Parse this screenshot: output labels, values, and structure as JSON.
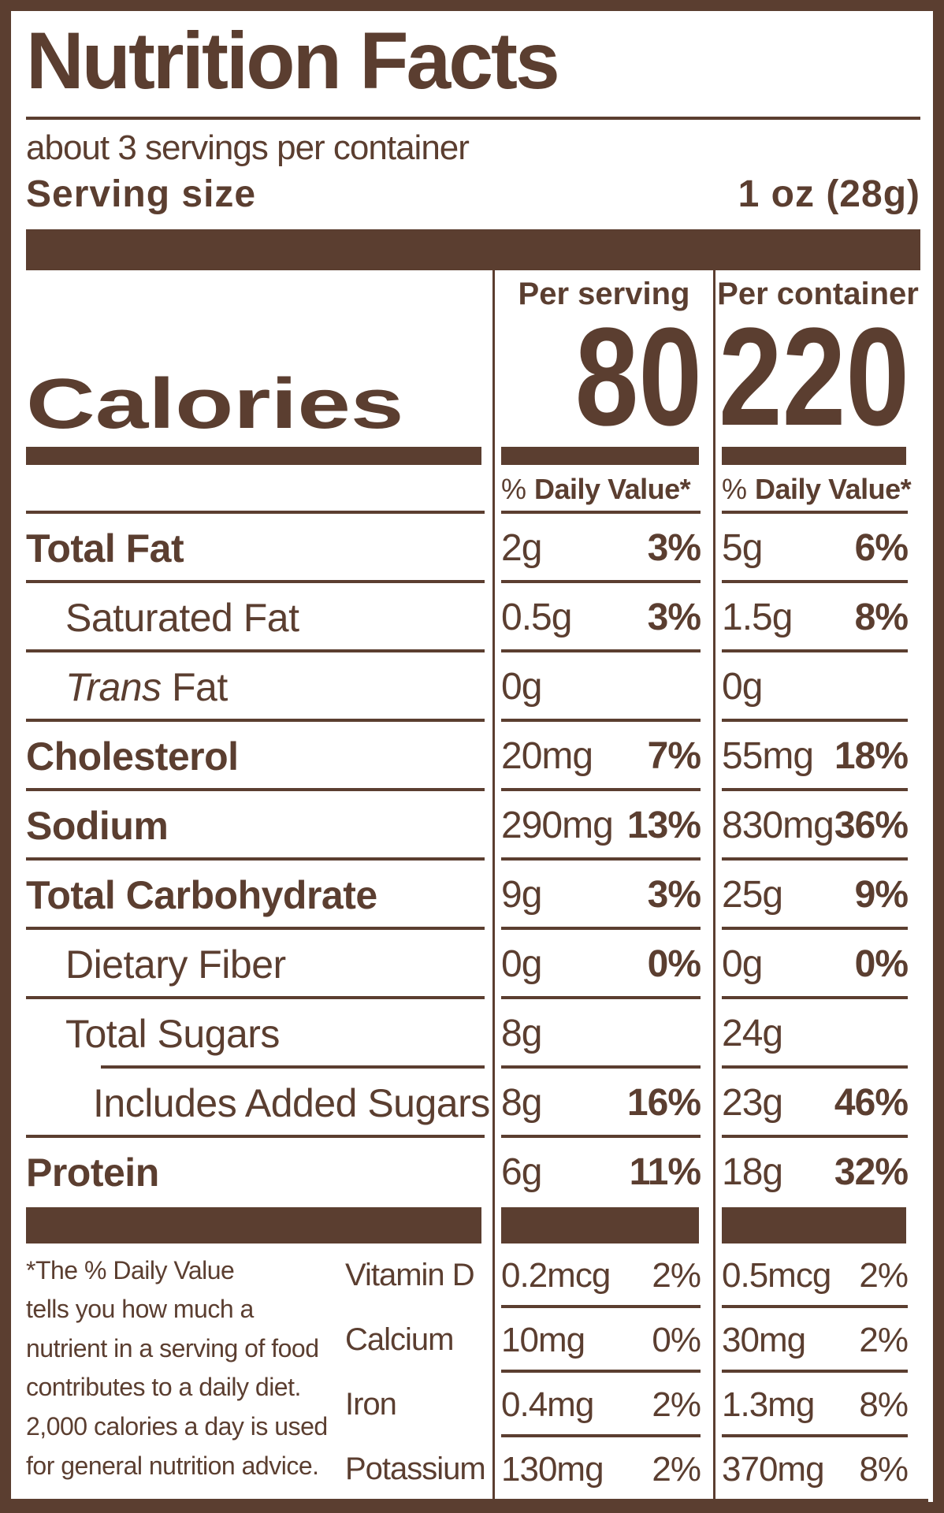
{
  "colors": {
    "brown": "#5B3E30",
    "background": "#FFFFFF"
  },
  "header": {
    "title": "Nutrition Facts",
    "servings_per_container": "about 3 servings per container",
    "serving_size_label": "Serving size",
    "serving_size_value": "1 oz (28g)"
  },
  "calories": {
    "label": "Calories",
    "serving": {
      "header": "Per serving",
      "value": "80"
    },
    "container": {
      "header": "Per container",
      "value": "220"
    }
  },
  "dv_header": {
    "sign": "%",
    "label": "Daily Value*"
  },
  "nutrients": [
    {
      "name": "Total Fat",
      "bold": true,
      "indent": 0,
      "serving": {
        "amount": "2g",
        "dv": "3%"
      },
      "container": {
        "amount": "5g",
        "dv": "6%"
      }
    },
    {
      "name": "Saturated Fat",
      "bold": false,
      "indent": 1,
      "serving": {
        "amount": "0.5g",
        "dv": "3%"
      },
      "container": {
        "amount": "1.5g",
        "dv": "8%"
      }
    },
    {
      "name": "Fat",
      "italic_prefix": "Trans",
      "bold": false,
      "indent": 1,
      "serving": {
        "amount": "0g",
        "dv": ""
      },
      "container": {
        "amount": "0g",
        "dv": ""
      }
    },
    {
      "name": "Cholesterol",
      "bold": true,
      "indent": 0,
      "serving": {
        "amount": "20mg",
        "dv": "7%"
      },
      "container": {
        "amount": "55mg",
        "dv": "18%"
      }
    },
    {
      "name": "Sodium",
      "bold": true,
      "indent": 0,
      "serving": {
        "amount": "290mg",
        "dv": "13%"
      },
      "container": {
        "amount": "830mg",
        "dv": "36%"
      }
    },
    {
      "name": "Total Carbohydrate",
      "bold": true,
      "indent": 0,
      "serving": {
        "amount": "9g",
        "dv": "3%"
      },
      "container": {
        "amount": "25g",
        "dv": "9%"
      }
    },
    {
      "name": "Dietary Fiber",
      "bold": false,
      "indent": 1,
      "serving": {
        "amount": "0g",
        "dv": "0%"
      },
      "container": {
        "amount": "0g",
        "dv": "0%"
      }
    },
    {
      "name": "Total Sugars",
      "bold": false,
      "indent": 1,
      "rule_indented": true,
      "serving": {
        "amount": "8g",
        "dv": ""
      },
      "container": {
        "amount": "24g",
        "dv": ""
      }
    },
    {
      "name": "Includes Added Sugars",
      "bold": false,
      "indent": 2,
      "serving": {
        "amount": "8g",
        "dv": "16%"
      },
      "container": {
        "amount": "23g",
        "dv": "46%"
      }
    },
    {
      "name": "Protein",
      "bold": true,
      "indent": 0,
      "last": true,
      "serving": {
        "amount": "6g",
        "dv": "11%"
      },
      "container": {
        "amount": "18g",
        "dv": "32%"
      }
    }
  ],
  "footnote": "*The % Daily Value\ntells you how much a\nnutrient in a serving of food\ncontributes to a daily diet.\n2,000 calories a day is used\nfor general nutrition advice.",
  "vitamins": [
    {
      "name": "Vitamin D",
      "serving": {
        "amount": "0.2mcg",
        "dv": "2%"
      },
      "container": {
        "amount": "0.5mcg",
        "dv": "2%"
      }
    },
    {
      "name": "Calcium",
      "serving": {
        "amount": "10mg",
        "dv": "0%"
      },
      "container": {
        "amount": "30mg",
        "dv": "2%"
      }
    },
    {
      "name": "Iron",
      "serving": {
        "amount": "0.4mg",
        "dv": "2%"
      },
      "container": {
        "amount": "1.3mg",
        "dv": "8%"
      }
    },
    {
      "name": "Potassium",
      "serving": {
        "amount": "130mg",
        "dv": "2%"
      },
      "container": {
        "amount": "370mg",
        "dv": "8%"
      }
    }
  ]
}
